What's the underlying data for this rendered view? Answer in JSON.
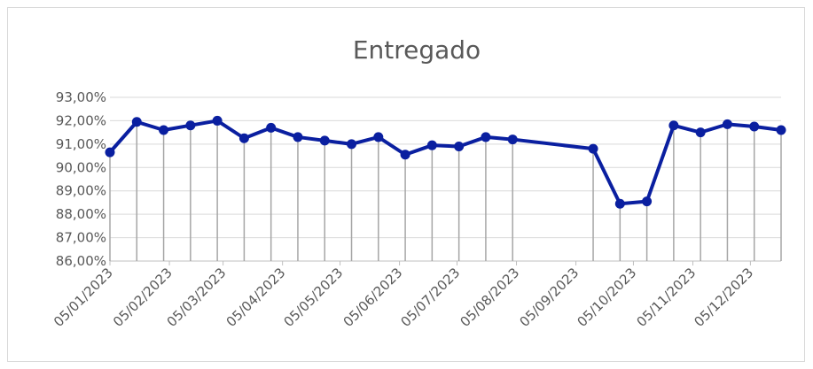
{
  "chart_data": {
    "type": "line",
    "title": "Entregado",
    "x": [
      "05/01/2023",
      "19/01/2023",
      "02/02/2023",
      "16/02/2023",
      "02/03/2023",
      "16/03/2023",
      "30/03/2023",
      "13/04/2023",
      "27/04/2023",
      "11/05/2023",
      "25/05/2023",
      "08/06/2023",
      "22/06/2023",
      "06/07/2023",
      "20/07/2023",
      "03/08/2023",
      "14/09/2023",
      "28/09/2023",
      "12/10/2023",
      "26/10/2023",
      "09/11/2023",
      "23/11/2023",
      "07/12/2023",
      "21/12/2023"
    ],
    "series": [
      {
        "name": "Entregado",
        "color": "#0a1fa0",
        "values": [
          90.65,
          91.95,
          91.6,
          91.8,
          92.0,
          91.25,
          91.7,
          91.3,
          91.15,
          91.0,
          91.3,
          90.55,
          90.95,
          90.9,
          91.3,
          91.2,
          90.8,
          88.45,
          88.55,
          91.8,
          91.5,
          91.85,
          91.75,
          91.6
        ]
      }
    ],
    "xlim": [
      "05/01/2023",
      "21/12/2023"
    ],
    "xticks": [
      "05/01/2023",
      "05/02/2023",
      "05/03/2023",
      "05/04/2023",
      "05/05/2023",
      "05/06/2023",
      "05/07/2023",
      "05/08/2023",
      "05/09/2023",
      "05/10/2023",
      "05/11/2023",
      "05/12/2023"
    ],
    "ylim": [
      86,
      93
    ],
    "yticks": [
      {
        "value": 86,
        "label": "86,00%"
      },
      {
        "value": 87,
        "label": "87,00%"
      },
      {
        "value": 88,
        "label": "88,00%"
      },
      {
        "value": 89,
        "label": "89,00%"
      },
      {
        "value": 90,
        "label": "90,00%"
      },
      {
        "value": 91,
        "label": "91,00%"
      },
      {
        "value": 92,
        "label": "92,00%"
      },
      {
        "value": 93,
        "label": "93,00%"
      }
    ],
    "grid": true,
    "drop_lines": true
  }
}
